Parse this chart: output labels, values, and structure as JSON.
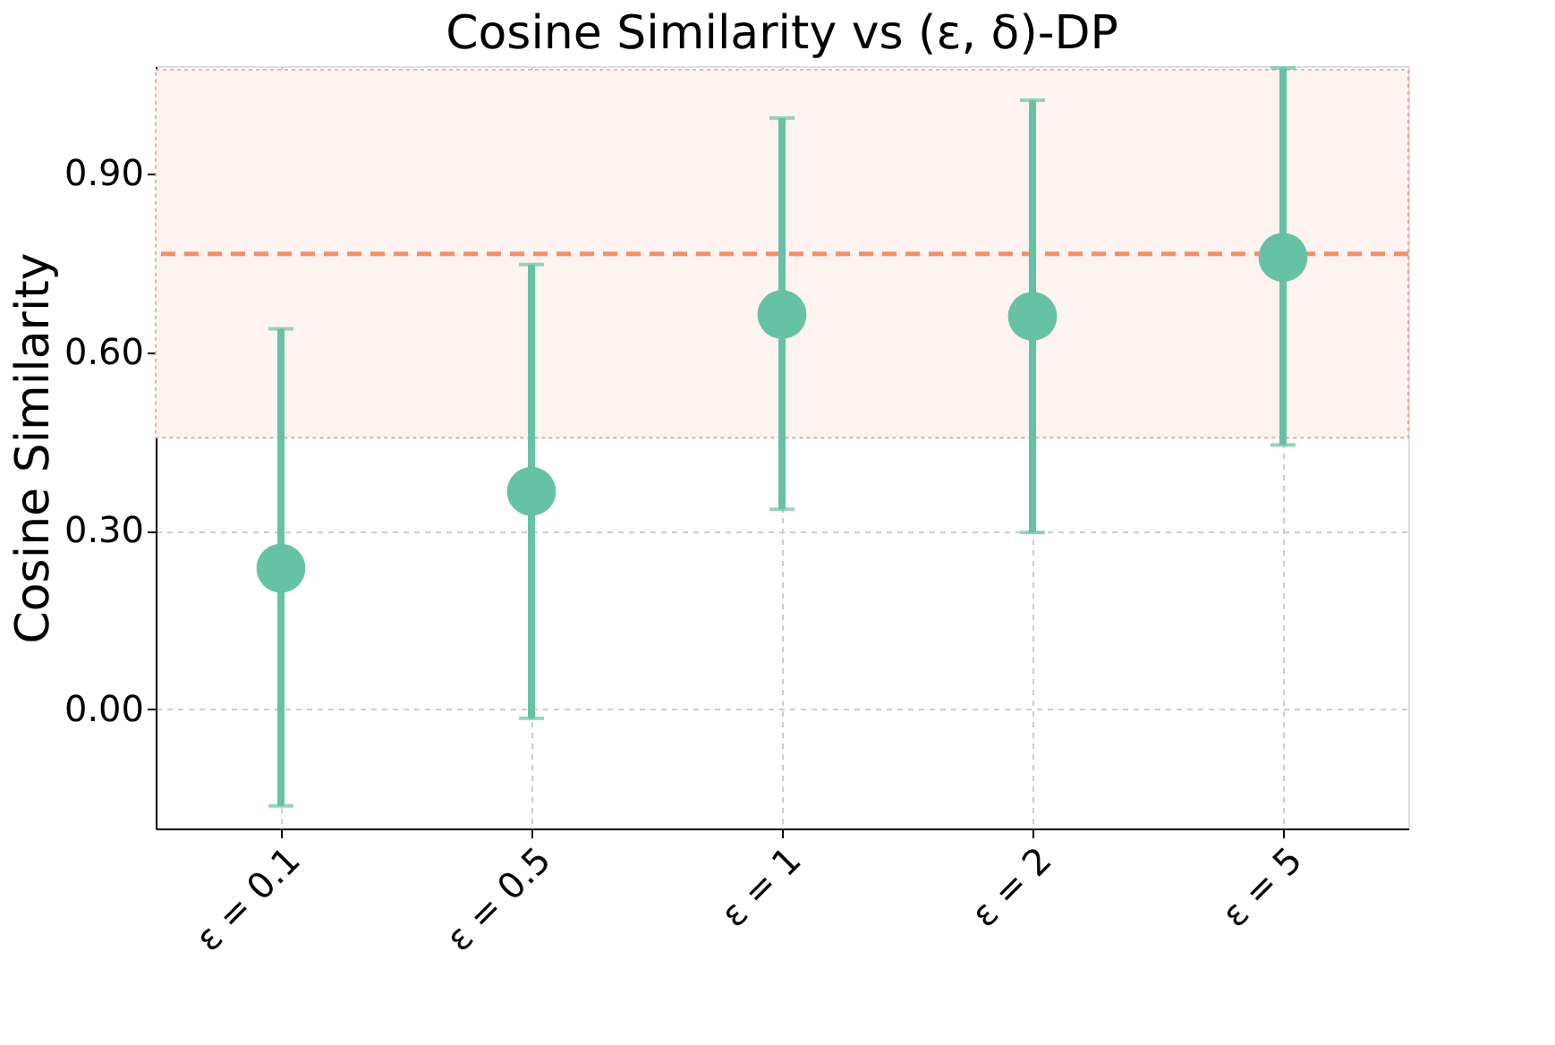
{
  "chart_data": {
    "type": "scatter",
    "title": "Cosine Similarity vs (ε, δ)-DP",
    "ylabel": "Cosine Similarity",
    "categories": [
      "ε = 0.1",
      "ε = 0.5",
      "ε = 1",
      "ε = 2",
      "ε = 5"
    ],
    "series": [
      {
        "color": "#66c2a5",
        "values": [
          0.237,
          0.366,
          0.663,
          0.66,
          0.759
        ],
        "errors": [
          [
            -0.162,
            0.639
          ],
          [
            -0.015,
            0.747
          ],
          [
            0.336,
            0.993
          ],
          [
            0.297,
            1.023
          ],
          [
            0.444,
            1.077
          ]
        ]
      }
    ],
    "marker": "circle",
    "ylim": [
      -0.2,
      1.08
    ],
    "yticks": [
      {
        "value": 0,
        "label": "0.00"
      },
      {
        "value": 0.3,
        "label": "0.30"
      },
      {
        "value": 0.6,
        "label": "0.60"
      },
      {
        "value": 0.9,
        "label": "0.90"
      }
    ],
    "ref_lines": [
      {
        "axis": "y",
        "value": 0.765,
        "color": "#fc8d62",
        "line_style": "dashed"
      }
    ],
    "bands": [
      {
        "axis": "y",
        "from": 0.456,
        "to": 1.074,
        "color": "#fdf3f0"
      }
    ],
    "grid": true
  }
}
